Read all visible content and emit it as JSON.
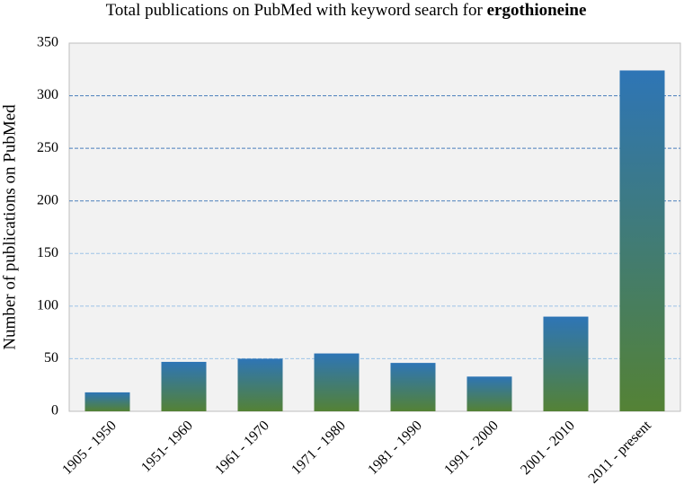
{
  "chart_data": {
    "type": "bar",
    "title": "Total publications on PubMed with keyword search for",
    "title_emphasis": "ergothioneine",
    "y_label": "Number of publications on PubMed",
    "categories": [
      "1905 - 1950",
      "1951- 1960",
      "1961 - 1970",
      "1971 - 1980",
      "1981 - 1990",
      "1991 - 2000",
      "2001 - 2010",
      "2011 - present"
    ],
    "values": [
      18,
      47,
      50,
      55,
      46,
      33,
      90,
      324
    ],
    "color_top": "#2e75b6",
    "color_bottom": "#548235",
    "ylim": [
      0,
      350
    ],
    "yticks": [
      0,
      50,
      100,
      150,
      200,
      250,
      300,
      350
    ],
    "grid": true
  }
}
